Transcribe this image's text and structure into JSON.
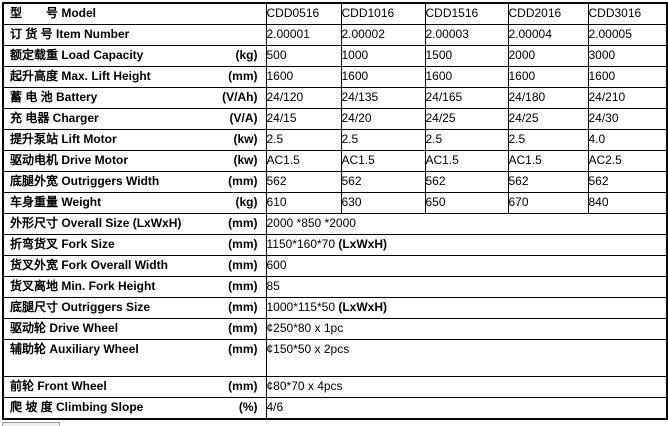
{
  "colors": {
    "table_border": "#000000",
    "text": "#000000",
    "background": "#ffffff",
    "partial_box_fill": "#ededed",
    "partial_box_border": "#999999"
  },
  "table": {
    "rows": [
      {
        "key": "model",
        "label": "型　　号 Model",
        "unit": "",
        "values": [
          "CDD0516",
          "CDD1016",
          "CDD1516",
          "CDD2016",
          "CDD3016"
        ]
      },
      {
        "key": "item-number",
        "label": "订 货 号 Item Number",
        "unit": "",
        "values": [
          "2.00001",
          "2.00002",
          "2.00003",
          "2.00004",
          "2.00005"
        ]
      },
      {
        "key": "load-capacity",
        "label": "额定载重 Load Capacity",
        "unit": "(kg)",
        "values": [
          "500",
          "1000",
          "1500",
          "2000",
          "3000"
        ]
      },
      {
        "key": "max-lift-height",
        "label": "起升高度 Max. Lift Height",
        "unit": "(mm)",
        "values": [
          "1600",
          "1600",
          "1600",
          "1600",
          "1600"
        ]
      },
      {
        "key": "battery",
        "label": "蓄 电 池  Battery",
        "unit": "(V/Ah)",
        "values": [
          "24/120",
          "24/135",
          "24/165",
          "24/180",
          "24/210"
        ]
      },
      {
        "key": "charger",
        "label": "充 电器 Charger",
        "unit": "(V/A)",
        "values": [
          "24/15",
          "24/20",
          "24/25",
          "24/25",
          "24/30"
        ]
      },
      {
        "key": "lift-motor",
        "label": "提升泵站  Lift Motor",
        "unit": "(kw)",
        "values": [
          "2.5",
          "2.5",
          "2.5",
          "2.5",
          "4.0"
        ]
      },
      {
        "key": "drive-motor",
        "label": "驱动电机 Drive Motor",
        "unit": "(kw)",
        "values": [
          "AC1.5",
          "AC1.5",
          "AC1.5",
          "AC1.5",
          "AC2.5"
        ]
      },
      {
        "key": "outriggers-width",
        "label": "底腿外宽 Outriggers Width",
        "unit": "(mm)",
        "values": [
          "562",
          "562",
          "562",
          "562",
          "562"
        ]
      },
      {
        "key": "weight",
        "label": "车身重量 Weight",
        "unit": "(kg)",
        "values": [
          "610",
          "630",
          "650",
          "670",
          "840"
        ]
      },
      {
        "key": "overall-size",
        "label": "外形尺寸 Overall Size (LxWxH)",
        "unit": "(mm)",
        "span_value": "2000 *850 *2000",
        "span_value_bold": ""
      },
      {
        "key": "fork-size",
        "label": "折弯货叉 Fork Size",
        "unit": "(mm)",
        "span_value": "1150*160*70 ",
        "span_value_bold": "(LxWxH)"
      },
      {
        "key": "fork-overall-width",
        "label": "货叉外宽 Fork Overall Width",
        "unit": "(mm)",
        "span_value": "600",
        "span_value_bold": ""
      },
      {
        "key": "min-fork-height",
        "label": "货叉离地 Min. Fork Height",
        "unit": "(mm)",
        "span_value": "85",
        "span_value_bold": ""
      },
      {
        "key": "outriggers-size",
        "label": "底腿尺寸  Outriggers Size",
        "unit": "(mm)",
        "span_value": "1000*115*50 ",
        "span_value_bold": "(LxWxH)"
      },
      {
        "key": "drive-wheel",
        "label": "驱动轮  Drive Wheel",
        "unit": "(mm)",
        "span_value": "¢250*80 x 1pc",
        "span_value_bold": ""
      },
      {
        "key": "auxiliary-wheel",
        "label": "辅助轮 Auxiliary Wheel",
        "unit": "(mm)",
        "span_value": "¢150*50 x 2pcs",
        "span_value_bold": "",
        "tall": true
      },
      {
        "key": "front-wheel",
        "label": "前轮 Front Wheel",
        "unit": "(mm)",
        "span_value": "¢80*70 x 4pcs",
        "span_value_bold": ""
      },
      {
        "key": "climbing-slope",
        "label": "爬 坡 度 Climbing Slope",
        "unit": "(%)",
        "span_value": "4/6",
        "span_value_bold": ""
      }
    ]
  }
}
